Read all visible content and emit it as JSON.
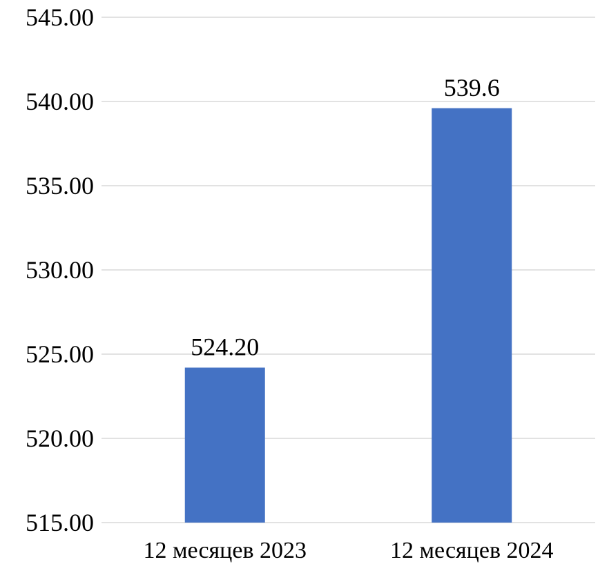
{
  "chart_data": {
    "type": "bar",
    "categories": [
      "12 месяцев 2023",
      "12 месяцев 2024"
    ],
    "values": [
      524.2,
      539.6
    ],
    "data_labels": [
      "524.20",
      "539.6"
    ],
    "yticks": [
      "515.00",
      "520.00",
      "525.00",
      "530.00",
      "535.00",
      "540.00",
      "545.00"
    ],
    "ylim": [
      515,
      545
    ],
    "grid": true,
    "legend": "none",
    "bar_color": "#4472c4",
    "title": "",
    "xlabel": "",
    "ylabel": ""
  }
}
